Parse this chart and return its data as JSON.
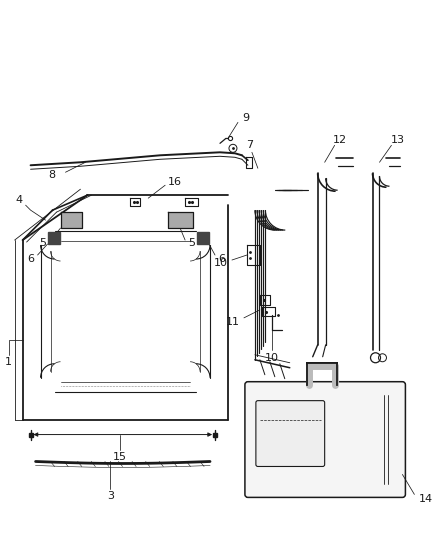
{
  "background_color": "#ffffff",
  "line_color": "#1a1a1a",
  "fig_width": 4.38,
  "fig_height": 5.33,
  "dpi": 100,
  "label_fontsize": 7.5,
  "leader_lw": 0.55,
  "main_lw": 1.0,
  "thin_lw": 0.6
}
